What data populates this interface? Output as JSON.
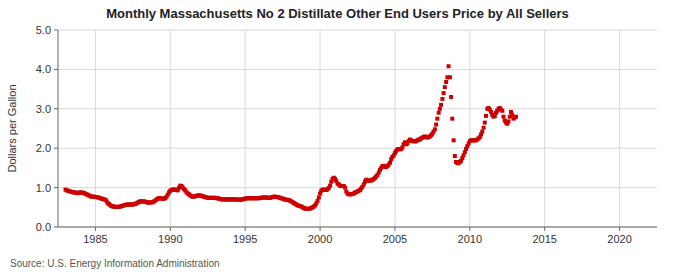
{
  "chart_data": {
    "type": "scatter",
    "title": "Monthly Massachusetts No 2 Distillate Other End Users Price by All Sellers",
    "y_label": "Dollars per Gallon",
    "source": "Source: U.S. Energy Information Administration",
    "xlim": [
      1982.5,
      2022.5
    ],
    "ylim": [
      0.0,
      5.0
    ],
    "xticks": [
      1985,
      1990,
      1995,
      2000,
      2005,
      2010,
      2015,
      2020
    ],
    "yticks": [
      {
        "value": 0.0,
        "label": "0.0"
      },
      {
        "value": 1.0,
        "label": "1.0"
      },
      {
        "value": 2.0,
        "label": "2.0"
      },
      {
        "value": 3.0,
        "label": "3.0"
      },
      {
        "value": 4.0,
        "label": "4.0"
      },
      {
        "value": 5.0,
        "label": "5.0"
      }
    ],
    "grid": true,
    "color": "#CC0000",
    "marker": "square",
    "x": [
      1983.0,
      1983.08,
      1983.17,
      1983.25,
      1983.33,
      1983.42,
      1983.5,
      1983.58,
      1983.67,
      1983.75,
      1983.83,
      1983.92,
      1984.0,
      1984.08,
      1984.17,
      1984.25,
      1984.33,
      1984.42,
      1984.5,
      1984.58,
      1984.67,
      1984.75,
      1984.83,
      1984.92,
      1985.0,
      1985.08,
      1985.17,
      1985.25,
      1985.33,
      1985.42,
      1985.5,
      1985.58,
      1985.67,
      1985.75,
      1985.83,
      1985.92,
      1986.0,
      1986.08,
      1986.17,
      1986.25,
      1986.33,
      1986.42,
      1986.5,
      1986.58,
      1986.67,
      1986.75,
      1986.83,
      1986.92,
      1987.0,
      1987.08,
      1987.17,
      1987.25,
      1987.33,
      1987.42,
      1987.5,
      1987.58,
      1987.67,
      1987.75,
      1987.83,
      1987.92,
      1988.0,
      1988.08,
      1988.17,
      1988.25,
      1988.33,
      1988.42,
      1988.5,
      1988.58,
      1988.67,
      1988.75,
      1988.83,
      1988.92,
      1989.0,
      1989.08,
      1989.17,
      1989.25,
      1989.33,
      1989.42,
      1989.5,
      1989.58,
      1989.67,
      1989.75,
      1989.83,
      1989.92,
      1990.0,
      1990.08,
      1990.17,
      1990.25,
      1990.33,
      1990.42,
      1990.5,
      1990.58,
      1990.67,
      1990.75,
      1990.83,
      1990.92,
      1991.0,
      1991.08,
      1991.17,
      1991.25,
      1991.33,
      1991.42,
      1991.5,
      1991.58,
      1991.67,
      1991.75,
      1991.83,
      1991.92,
      1992.0,
      1992.08,
      1992.17,
      1992.25,
      1992.33,
      1992.42,
      1992.5,
      1992.58,
      1992.67,
      1992.75,
      1992.83,
      1992.92,
      1993.0,
      1993.08,
      1993.17,
      1993.25,
      1993.33,
      1993.42,
      1993.5,
      1993.58,
      1993.67,
      1993.75,
      1993.83,
      1993.92,
      1994.0,
      1994.08,
      1994.17,
      1994.25,
      1994.33,
      1994.42,
      1994.5,
      1994.58,
      1994.67,
      1994.75,
      1994.83,
      1994.92,
      1995.0,
      1995.08,
      1995.17,
      1995.25,
      1995.33,
      1995.42,
      1995.5,
      1995.58,
      1995.67,
      1995.75,
      1995.83,
      1995.92,
      1996.0,
      1996.08,
      1996.17,
      1996.25,
      1996.33,
      1996.42,
      1996.5,
      1996.58,
      1996.67,
      1996.75,
      1996.83,
      1996.92,
      1997.0,
      1997.08,
      1997.17,
      1997.25,
      1997.33,
      1997.42,
      1997.5,
      1997.58,
      1997.67,
      1997.75,
      1997.83,
      1997.92,
      1998.0,
      1998.08,
      1998.17,
      1998.25,
      1998.33,
      1998.42,
      1998.5,
      1998.58,
      1998.67,
      1998.75,
      1998.83,
      1998.92,
      1999.0,
      1999.08,
      1999.17,
      1999.25,
      1999.33,
      1999.42,
      1999.5,
      1999.58,
      1999.67,
      1999.75,
      1999.83,
      1999.92,
      2000.0,
      2000.08,
      2000.17,
      2000.25,
      2000.33,
      2000.42,
      2000.5,
      2000.58,
      2000.67,
      2000.75,
      2000.83,
      2000.92,
      2001.0,
      2001.08,
      2001.17,
      2001.25,
      2001.33,
      2001.42,
      2001.5,
      2001.58,
      2001.67,
      2001.75,
      2001.83,
      2001.92,
      2002.0,
      2002.08,
      2002.17,
      2002.25,
      2002.33,
      2002.42,
      2002.5,
      2002.58,
      2002.67,
      2002.75,
      2002.83,
      2002.92,
      2003.0,
      2003.08,
      2003.17,
      2003.25,
      2003.33,
      2003.42,
      2003.5,
      2003.58,
      2003.67,
      2003.75,
      2003.83,
      2003.92,
      2004.0,
      2004.08,
      2004.17,
      2004.25,
      2004.33,
      2004.42,
      2004.5,
      2004.58,
      2004.67,
      2004.75,
      2004.83,
      2004.92,
      2005.0,
      2005.08,
      2005.17,
      2005.25,
      2005.33,
      2005.42,
      2005.5,
      2005.58,
      2005.67,
      2005.75,
      2005.83,
      2005.92,
      2006.0,
      2006.08,
      2006.17,
      2006.25,
      2006.33,
      2006.42,
      2006.5,
      2006.58,
      2006.67,
      2006.75,
      2006.83,
      2006.92,
      2007.0,
      2007.08,
      2007.17,
      2007.25,
      2007.33,
      2007.42,
      2007.5,
      2007.58,
      2007.67,
      2007.75,
      2007.83,
      2007.92,
      2008.0,
      2008.08,
      2008.17,
      2008.25,
      2008.33,
      2008.42,
      2008.5,
      2008.58,
      2008.67,
      2008.75,
      2008.83,
      2008.92,
      2009.0,
      2009.08,
      2009.17,
      2009.25,
      2009.33,
      2009.42,
      2009.5,
      2009.58,
      2009.67,
      2009.75,
      2009.83,
      2009.92,
      2010.0,
      2010.08,
      2010.17,
      2010.25,
      2010.33,
      2010.42,
      2010.5,
      2010.58,
      2010.67,
      2010.75,
      2010.83,
      2010.92,
      2011.0,
      2011.08,
      2011.17,
      2011.25,
      2011.33,
      2011.42,
      2011.5,
      2011.58,
      2011.67,
      2011.75,
      2011.83,
      2011.92,
      2012.0,
      2012.08,
      2012.17,
      2012.25,
      2012.33,
      2012.42,
      2012.5,
      2012.58,
      2012.67,
      2012.75,
      2012.83,
      2012.92,
      2013.0,
      2013.08
    ],
    "values": [
      0.95,
      0.93,
      0.92,
      0.91,
      0.9,
      0.89,
      0.88,
      0.88,
      0.87,
      0.87,
      0.86,
      0.87,
      0.88,
      0.87,
      0.87,
      0.86,
      0.84,
      0.83,
      0.81,
      0.8,
      0.78,
      0.77,
      0.77,
      0.77,
      0.76,
      0.76,
      0.75,
      0.74,
      0.73,
      0.72,
      0.71,
      0.7,
      0.69,
      0.65,
      0.6,
      0.58,
      0.55,
      0.53,
      0.52,
      0.52,
      0.51,
      0.51,
      0.51,
      0.51,
      0.52,
      0.53,
      0.54,
      0.55,
      0.56,
      0.57,
      0.57,
      0.57,
      0.57,
      0.57,
      0.57,
      0.58,
      0.59,
      0.6,
      0.62,
      0.64,
      0.65,
      0.65,
      0.65,
      0.65,
      0.64,
      0.63,
      0.62,
      0.62,
      0.62,
      0.63,
      0.63,
      0.65,
      0.67,
      0.7,
      0.72,
      0.73,
      0.73,
      0.72,
      0.72,
      0.72,
      0.73,
      0.77,
      0.82,
      0.88,
      0.92,
      0.94,
      0.95,
      0.95,
      0.95,
      0.94,
      0.93,
      1.0,
      1.05,
      1.04,
      1.0,
      0.96,
      0.93,
      0.88,
      0.85,
      0.83,
      0.8,
      0.78,
      0.77,
      0.77,
      0.78,
      0.79,
      0.8,
      0.8,
      0.8,
      0.79,
      0.78,
      0.77,
      0.76,
      0.75,
      0.74,
      0.74,
      0.74,
      0.74,
      0.74,
      0.74,
      0.74,
      0.73,
      0.73,
      0.72,
      0.71,
      0.7,
      0.7,
      0.7,
      0.7,
      0.7,
      0.7,
      0.7,
      0.7,
      0.7,
      0.7,
      0.7,
      0.7,
      0.7,
      0.7,
      0.69,
      0.69,
      0.7,
      0.7,
      0.71,
      0.72,
      0.73,
      0.73,
      0.73,
      0.73,
      0.73,
      0.73,
      0.73,
      0.73,
      0.73,
      0.73,
      0.73,
      0.74,
      0.74,
      0.75,
      0.75,
      0.75,
      0.75,
      0.74,
      0.74,
      0.74,
      0.75,
      0.76,
      0.77,
      0.77,
      0.76,
      0.76,
      0.75,
      0.74,
      0.73,
      0.72,
      0.71,
      0.7,
      0.69,
      0.69,
      0.68,
      0.67,
      0.65,
      0.63,
      0.61,
      0.59,
      0.57,
      0.55,
      0.54,
      0.53,
      0.52,
      0.5,
      0.48,
      0.47,
      0.46,
      0.46,
      0.46,
      0.47,
      0.48,
      0.5,
      0.52,
      0.55,
      0.6,
      0.66,
      0.75,
      0.85,
      0.92,
      0.95,
      0.95,
      0.94,
      0.94,
      0.96,
      0.99,
      1.05,
      1.15,
      1.22,
      1.25,
      1.22,
      1.17,
      1.1,
      1.08,
      1.05,
      1.04,
      1.04,
      1.04,
      1.0,
      0.9,
      0.85,
      0.83,
      0.83,
      0.83,
      0.84,
      0.85,
      0.87,
      0.89,
      0.9,
      0.92,
      0.94,
      0.98,
      1.02,
      1.08,
      1.15,
      1.2,
      1.18,
      1.18,
      1.18,
      1.18,
      1.2,
      1.22,
      1.25,
      1.28,
      1.32,
      1.38,
      1.45,
      1.5,
      1.55,
      1.55,
      1.53,
      1.52,
      1.55,
      1.58,
      1.63,
      1.72,
      1.78,
      1.82,
      1.88,
      1.93,
      1.97,
      1.98,
      1.97,
      1.98,
      2.02,
      2.1,
      2.15,
      2.1,
      2.12,
      2.18,
      2.22,
      2.2,
      2.18,
      2.18,
      2.17,
      2.18,
      2.2,
      2.22,
      2.22,
      2.25,
      2.27,
      2.28,
      2.3,
      2.28,
      2.27,
      2.28,
      2.3,
      2.33,
      2.37,
      2.42,
      2.48,
      2.6,
      2.75,
      2.9,
      3.0,
      3.1,
      3.25,
      3.4,
      3.55,
      3.68,
      3.8,
      4.08,
      3.8,
      3.3,
      2.75,
      2.2,
      1.8,
      1.65,
      1.62,
      1.62,
      1.65,
      1.68,
      1.75,
      1.82,
      1.9,
      1.98,
      2.05,
      2.12,
      2.18,
      2.2,
      2.2,
      2.2,
      2.2,
      2.2,
      2.22,
      2.25,
      2.28,
      2.35,
      2.42,
      2.52,
      2.65,
      2.82,
      3.0,
      3.02,
      2.98,
      2.92,
      2.85,
      2.8,
      2.82,
      2.9,
      2.95,
      3.0,
      3.02,
      2.98,
      2.95,
      2.8,
      2.7,
      2.65,
      2.62,
      2.68,
      2.8,
      2.92,
      2.85,
      2.75,
      2.78,
      2.8
    ]
  }
}
